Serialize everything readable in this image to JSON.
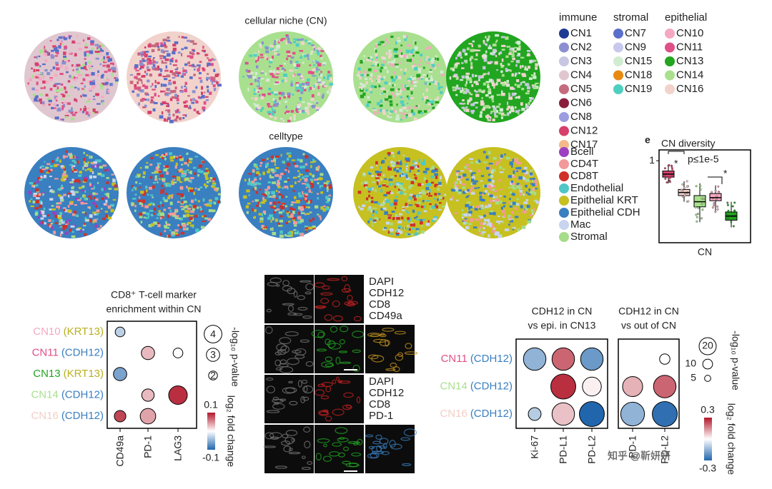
{
  "top": {
    "title_cn": "cellular niche (CN)",
    "title_ct": "celltype"
  },
  "cn_legend": [
    {
      "name": "immune",
      "items": [
        {
          "label": "CN1",
          "color": "#1f3a93"
        },
        {
          "label": "CN2",
          "color": "#8b8fd0"
        },
        {
          "label": "CN3",
          "color": "#c9c6e4"
        },
        {
          "label": "CN4",
          "color": "#e0c7cf"
        },
        {
          "label": "CN5",
          "color": "#c46b7d"
        },
        {
          "label": "CN6",
          "color": "#8a1f3c"
        },
        {
          "label": "CN8",
          "color": "#9c9ce0"
        },
        {
          "label": "CN12",
          "color": "#d6406b"
        },
        {
          "label": "CN17",
          "color": "#f4b98a"
        }
      ]
    },
    {
      "name": "stromal",
      "items": [
        {
          "label": "CN7",
          "color": "#5a6fc9"
        },
        {
          "label": "CN9",
          "color": "#c8c8ee"
        },
        {
          "label": "CN15",
          "color": "#d2ecd2"
        },
        {
          "label": "CN18",
          "color": "#e88a10"
        },
        {
          "label": "CN19",
          "color": "#4fcfc0"
        }
      ]
    },
    {
      "name": "epithelial",
      "items": [
        {
          "label": "CN10",
          "color": "#f4a9c0"
        },
        {
          "label": "CN11",
          "color": "#e05088"
        },
        {
          "label": "CN13",
          "color": "#22a520"
        },
        {
          "label": "CN14",
          "color": "#a9e08f"
        },
        {
          "label": "CN16",
          "color": "#f1d3cc"
        }
      ]
    }
  ],
  "ct_legend": [
    {
      "label": "Bcell",
      "color": "#9d3fc0"
    },
    {
      "label": "CD4T",
      "color": "#f29a9a"
    },
    {
      "label": "CD8T",
      "color": "#d0302a"
    },
    {
      "label": "Endothelial",
      "color": "#4fc7c7"
    },
    {
      "label": "Epithelial KRT",
      "color": "#c6c021"
    },
    {
      "label": "Epithelial CDH",
      "color": "#3a7fc0"
    },
    {
      "label": "Mac",
      "color": "#c9d4ee"
    },
    {
      "label": "Stromal",
      "color": "#a6dc8a"
    }
  ],
  "diversity": {
    "letter": "e",
    "title": "CN diversity",
    "xlabel": "CN",
    "annotations": [
      "*",
      "p≤1e-5",
      "*"
    ],
    "ylim": [
      0.2,
      1.05
    ],
    "yticks": [
      1
    ],
    "boxes": [
      {
        "color": "#d6406b",
        "min": 0.78,
        "q1": 0.84,
        "median": 0.87,
        "q3": 0.9,
        "max": 0.96
      },
      {
        "color": "#f1d3cc",
        "min": 0.6,
        "q1": 0.66,
        "median": 0.69,
        "q3": 0.72,
        "max": 0.8
      },
      {
        "color": "#a9e08f",
        "min": 0.4,
        "q1": 0.55,
        "median": 0.6,
        "q3": 0.66,
        "max": 0.78
      },
      {
        "color": "#f4a9c0",
        "min": 0.5,
        "q1": 0.61,
        "median": 0.64,
        "q3": 0.68,
        "max": 0.76
      },
      {
        "color": "#22a520",
        "min": 0.35,
        "q1": 0.42,
        "median": 0.46,
        "q3": 0.5,
        "max": 0.6
      }
    ]
  },
  "dot1": {
    "title": [
      "CD8⁺ T-cell marker",
      "enrichment within CN"
    ],
    "rows": [
      {
        "cn": "CN10",
        "cn_color": "#f4a9c0",
        "marker": "(KRT13)",
        "marker_color": "#b8b020"
      },
      {
        "cn": "CN11",
        "cn_color": "#e05088",
        "marker": "(CDH12)",
        "marker_color": "#3a7fc0"
      },
      {
        "cn": "CN13",
        "cn_color": "#22a520",
        "marker": "(KRT13)",
        "marker_color": "#b8b020"
      },
      {
        "cn": "CN14",
        "cn_color": "#a9e08f",
        "marker": "(CDH12)",
        "marker_color": "#3a7fc0"
      },
      {
        "cn": "CN16",
        "cn_color": "#f1cfc6",
        "marker": "(CDH12)",
        "marker_color": "#3a7fc0"
      }
    ],
    "columns": [
      "CD49a",
      "PD-1",
      "LAG3"
    ],
    "values": [
      [
        -0.03,
        null,
        null
      ],
      [
        null,
        0.03,
        0
      ],
      [
        -0.06,
        null,
        null
      ],
      [
        null,
        0.03,
        0.09
      ],
      [
        0.08,
        0.04,
        null
      ]
    ],
    "sizes": [
      [
        2.2,
        null,
        null
      ],
      [
        null,
        3,
        2.2
      ],
      [
        3,
        null,
        null
      ],
      [
        null,
        2.8,
        4.2
      ],
      [
        2.6,
        3.5,
        null
      ]
    ],
    "size_label": "-log₁₀ p-value",
    "size_ticks": [
      4,
      3,
      2
    ],
    "color_label": "log₂ fold change",
    "clim": [
      -0.1,
      0.1
    ]
  },
  "micro": {
    "labels1": [
      {
        "text": "DAPI",
        "color": "#999"
      },
      {
        "text": "CDH12",
        "color": "#d92a2a"
      },
      {
        "text": "CD8",
        "color": "#22a520"
      },
      {
        "text": "CD49a",
        "color": "#c8961e"
      }
    ],
    "labels2": [
      {
        "text": "DAPI",
        "color": "#999"
      },
      {
        "text": "CDH12",
        "color": "#d92a2a"
      },
      {
        "text": "CD8",
        "color": "#22a520"
      },
      {
        "text": "PD-1",
        "color": "#3a7fc0"
      }
    ]
  },
  "dot2": {
    "titles": [
      [
        "CDH12 in CN",
        "vs epi. in CN13"
      ],
      [
        "CDH12 in CN",
        "vs out of CN"
      ]
    ],
    "rows": [
      {
        "cn": "CN11",
        "cn_color": "#e05088",
        "marker": "(CDH12)",
        "marker_color": "#3a7fc0"
      },
      {
        "cn": "CN14",
        "cn_color": "#a9e08f",
        "marker": "(CDH12)",
        "marker_color": "#3a7fc0"
      },
      {
        "cn": "CN16",
        "cn_color": "#f1cfc6",
        "marker": "(CDH12)",
        "marker_color": "#3a7fc0"
      }
    ],
    "columns": [
      [
        "Ki-67",
        "PD-L1",
        "PD-L2"
      ],
      [
        "PD-1",
        "PD-L2"
      ]
    ],
    "values": [
      [
        [
          -0.15,
          0.2,
          -0.2
        ],
        [
          null,
          0.27,
          0.02
        ],
        [
          -0.1,
          0.08,
          -0.3
        ]
      ],
      [
        [
          null,
          0
        ],
        [
          0.1,
          0.2
        ],
        [
          -0.15,
          -0.28
        ]
      ]
    ],
    "sizes": [
      [
        [
          15,
          15,
          15
        ],
        [
          null,
          17,
          12
        ],
        [
          7,
          15,
          17
        ]
      ],
      [
        [
          null,
          5
        ],
        [
          13,
          15
        ],
        [
          16,
          17
        ]
      ]
    ],
    "size_label": "-log₁₀ p-value",
    "size_ticks": [
      20,
      10,
      5
    ],
    "color_label": "log₂ fold change",
    "clim": [
      -0.3,
      0.3
    ]
  },
  "watermark": "知乎 @靳妍妍"
}
